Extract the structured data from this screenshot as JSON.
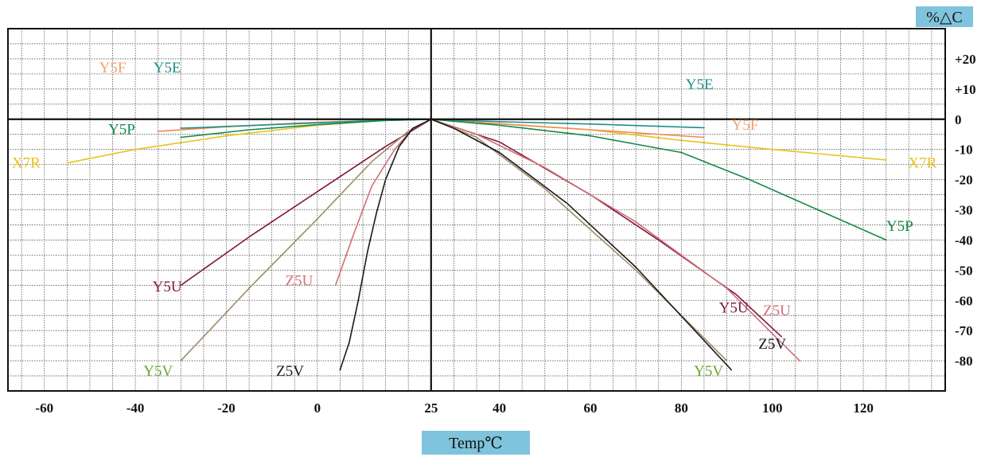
{
  "chart_data": {
    "type": "line",
    "xlabel": "Temp℃",
    "ylabel": "%△C",
    "xlim": [
      -68,
      138
    ],
    "ylim": [
      -90,
      30
    ],
    "x_ticks": [
      "-60",
      "-40",
      "-20",
      "0",
      "25",
      "40",
      "60",
      "80",
      "100",
      "120"
    ],
    "x_tick_values": [
      -60,
      -40,
      -20,
      0,
      25,
      40,
      60,
      80,
      100,
      120
    ],
    "y_ticks": [
      "+20",
      "+10",
      "0",
      "-10",
      "-20",
      "-30",
      "-40",
      "-50",
      "-60",
      "-70",
      "-80"
    ],
    "y_tick_values": [
      20,
      10,
      0,
      -10,
      -20,
      -30,
      -40,
      -50,
      -60,
      -70,
      -80
    ],
    "grid": true,
    "series": [
      {
        "name": "X7R",
        "color": "#e8c31e",
        "label_color": "#e8c31e",
        "x": [
          -55,
          -40,
          -20,
          0,
          15,
          25,
          40,
          60,
          80,
          100,
          125
        ],
        "y": [
          -14.5,
          -10,
          -5.5,
          -2,
          -0.3,
          0,
          -1.5,
          -3.5,
          -7,
          -10,
          -13.5
        ]
      },
      {
        "name": "Y5F",
        "color": "#f08a50",
        "label_color": "#f4a070",
        "x": [
          -35,
          -20,
          0,
          15,
          25,
          40,
          60,
          85
        ],
        "y": [
          -4,
          -2.5,
          -1,
          -0.3,
          0,
          -1.5,
          -3.5,
          -6
        ]
      },
      {
        "name": "Y5E",
        "color": "#1f8f8a",
        "label_color": "#1f8f8a",
        "x": [
          -30,
          -10,
          10,
          25,
          40,
          60,
          85
        ],
        "y": [
          -3,
          -1.8,
          -0.6,
          0,
          -0.8,
          -1.6,
          -2.8
        ]
      },
      {
        "name": "Y5P",
        "color": "#17894a",
        "label_color": "#17894a",
        "x": [
          -30,
          -15,
          0,
          15,
          25,
          40,
          60,
          80,
          95,
          110,
          125
        ],
        "y": [
          -6,
          -3.5,
          -1.8,
          -0.4,
          0,
          -2,
          -5.5,
          -11,
          -20,
          -30,
          -40
        ]
      },
      {
        "name": "Y5U",
        "color": "#7e1640",
        "label_color": "#7e1640",
        "x": [
          -30,
          -15,
          0,
          15,
          25,
          40,
          60,
          75,
          92,
          102
        ],
        "y": [
          -55,
          -39,
          -24,
          -9,
          0,
          -7.5,
          -25,
          -40,
          -58,
          -72
        ]
      },
      {
        "name": "Z5U",
        "color": "#d07076",
        "label_color": "#d0707a",
        "x": [
          4,
          8,
          12,
          17,
          21,
          25,
          35,
          50,
          70,
          90,
          106
        ],
        "y": [
          -55,
          -38,
          -22,
          -10,
          -3,
          0,
          -5,
          -16,
          -34,
          -56,
          -80
        ]
      },
      {
        "name": "Y5V",
        "color": "#a08c6c",
        "label_color": "#6aa82e",
        "x": [
          -30,
          -15,
          0,
          12,
          20,
          25,
          35,
          50,
          70,
          90
        ],
        "y": [
          -80,
          -56,
          -33,
          -14,
          -4,
          0,
          -6,
          -23,
          -50,
          -80
        ]
      },
      {
        "name": "Z5V",
        "color": "#1a1a1a",
        "label_color": "#1a1a1a",
        "x": [
          5,
          7,
          9,
          11,
          13,
          15,
          18,
          21,
          25,
          30,
          40,
          55,
          70,
          91
        ],
        "y": [
          -83,
          -74,
          -60,
          -44,
          -31,
          -20,
          -9,
          -3,
          0,
          -3,
          -11,
          -28,
          -49,
          -83
        ]
      }
    ],
    "series_labels": [
      {
        "series": "Y5F",
        "text": "Y5F",
        "x": -45,
        "y": 15.5
      },
      {
        "series": "Y5E",
        "text": "Y5E",
        "x": -33,
        "y": 15.5
      },
      {
        "series": "Y5P",
        "text": "Y5P",
        "x": -43,
        "y": -5
      },
      {
        "series": "X7R",
        "text": "X7R",
        "x": -64,
        "y": -16
      },
      {
        "series": "Y5E",
        "text": "Y5E",
        "x": 84,
        "y": 10
      },
      {
        "series": "Y5F",
        "text": "Y5F",
        "x": 94,
        "y": -3.5
      },
      {
        "series": "X7R",
        "text": "X7R",
        "x": 133,
        "y": -16
      },
      {
        "series": "Y5P",
        "text": "Y5P",
        "x": 128,
        "y": -37
      },
      {
        "series": "Y5U",
        "text": "Y5U",
        "x": -33,
        "y": -57
      },
      {
        "series": "Z5U",
        "text": "Z5U",
        "x": -4,
        "y": -55
      },
      {
        "series": "Y5V",
        "text": "Y5V",
        "x": -35,
        "y": -85
      },
      {
        "series": "Z5V",
        "text": "Z5V",
        "x": -6,
        "y": -85
      },
      {
        "series": "Y5U",
        "text": "Y5U",
        "x": 91.5,
        "y": -64
      },
      {
        "series": "Z5U",
        "text": "Z5U",
        "x": 101,
        "y": -65
      },
      {
        "series": "Z5V",
        "text": "Z5V",
        "x": 100,
        "y": -76
      },
      {
        "series": "Y5V",
        "text": "Y5V",
        "x": 86,
        "y": -85
      }
    ]
  }
}
